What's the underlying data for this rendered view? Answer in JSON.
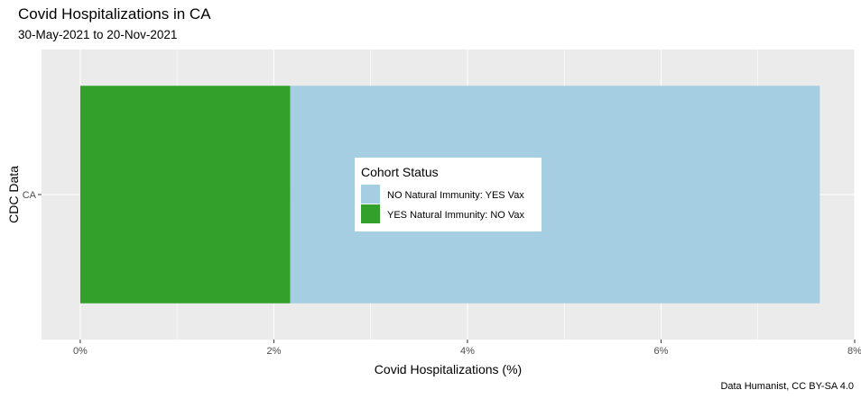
{
  "title": "Covid Hospitalizations in CA",
  "subtitle": "30-May-2021 to 20-Nov-2021",
  "caption": "Data Humanist, CC BY-SA 4.0",
  "chart_data": {
    "type": "bar",
    "orientation": "horizontal",
    "stacked": true,
    "categories": [
      "CA"
    ],
    "series": [
      {
        "name": "NO Natural Immunity: YES Vax",
        "values": [
          5.47
        ],
        "color": "#a6cee3"
      },
      {
        "name": "YES Natural Immunity: NO Vax",
        "values": [
          2.17
        ],
        "color": "#33a02c"
      }
    ],
    "xlabel": "Covid Hospitalizations (%)",
    "ylabel": "CDC Data",
    "xlim": [
      -0.4,
      8
    ],
    "x_ticks": [
      0,
      2,
      4,
      6,
      8
    ],
    "x_tick_labels": [
      "0%",
      "2%",
      "4%",
      "6%",
      "8%"
    ],
    "legend_title": "Cohort Status",
    "legend_position": "center",
    "grid": true,
    "panel_background": "#ebebeb"
  }
}
